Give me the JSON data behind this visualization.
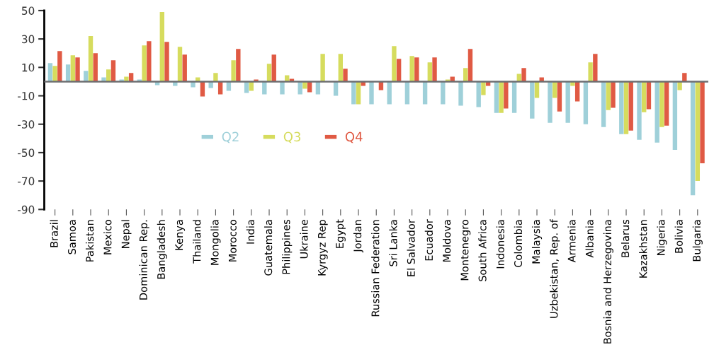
{
  "chart_data": {
    "type": "bar",
    "categories": [
      "Brazil",
      "Samoa",
      "Pakistan",
      "Mexico",
      "Nepal",
      "Dominican Rep.",
      "Bangladesh",
      "Kenya",
      "Thailand",
      "Mongolia",
      "Morocco",
      "India",
      "Guatemala",
      "Philippines",
      "Ukraine",
      "Kyrgyz Rep",
      "Egypt",
      "Jordan",
      "Russian Federation",
      "Sri Lanka",
      "El Salvador",
      "Ecuador",
      "Moldova",
      "Montenegro",
      "South Africa",
      "Indonesia",
      "Colombia",
      "Malaysia",
      "Uzbekistan, Rep. of",
      "Armenia",
      "Albania",
      "Bosnia and Herzegovina",
      "Belarus",
      "Kazakhstan",
      "Nigeria",
      "Bolivia",
      "Bulgaria"
    ],
    "series": [
      {
        "name": "Q2",
        "color": "#9fd0d9",
        "values": [
          13,
          12,
          7.5,
          3,
          1.5,
          1.5,
          -2.5,
          -3,
          -4,
          -4.5,
          -6.5,
          -8,
          -9,
          -9,
          -9,
          -9,
          -10,
          -16,
          -16,
          -16,
          -16,
          -16,
          -16,
          -17,
          -18,
          -22,
          -22,
          -26,
          -29,
          -29,
          -30,
          -32,
          -37,
          -41,
          -43,
          -48,
          -80
        ]
      },
      {
        "name": "Q3",
        "color": "#d6dc5e",
        "values": [
          11,
          18.5,
          32,
          8.5,
          3.5,
          25.5,
          49,
          24.5,
          3,
          6,
          15,
          -6.5,
          12.5,
          4.5,
          -5,
          19.5,
          19.5,
          -16,
          null,
          25,
          18,
          13.5,
          1.5,
          9.5,
          -9.5,
          -22,
          5.5,
          -11.5,
          -11.5,
          -3,
          13.5,
          -20,
          -37,
          -21.5,
          -32,
          -6,
          -70
        ]
      },
      {
        "name": "Q4",
        "color": "#e05a44",
        "values": [
          21.5,
          17,
          20,
          15,
          6,
          28.5,
          28,
          19,
          -10.5,
          -9,
          23,
          1.5,
          19,
          2,
          -7.5,
          null,
          9,
          -3,
          -6,
          16,
          17,
          17,
          3.5,
          23,
          -3,
          -19,
          9.5,
          3,
          -21,
          -14,
          19.5,
          -18.5,
          -34.5,
          -19.5,
          -31,
          6,
          -57.5
        ]
      }
    ],
    "ylim": [
      -90,
      50
    ],
    "yticks": [
      50,
      30,
      10,
      -10,
      -30,
      -50,
      -70,
      -90
    ],
    "ref_lines": [
      {
        "axis": "y",
        "value": 0,
        "color": "#6d6e71"
      }
    ],
    "legend": "center",
    "grid": false
  }
}
